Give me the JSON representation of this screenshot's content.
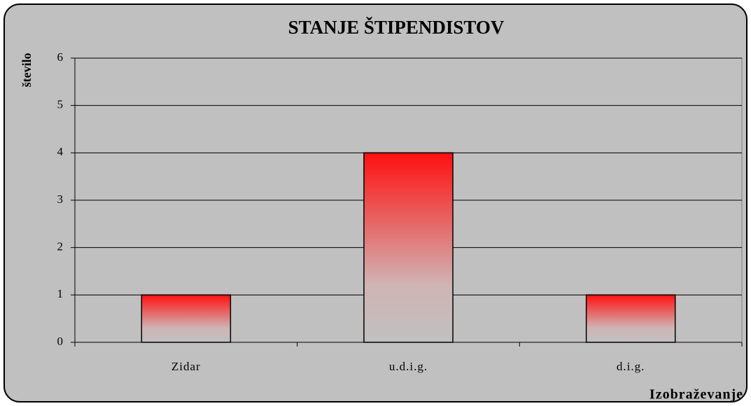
{
  "chart_data": {
    "type": "bar",
    "title": "STANJE ŠTIPENDISTOV",
    "y_label": "število",
    "x_label": "Izobraževanje",
    "categories": [
      "Zidar",
      "u.d.i.g.",
      "d.i.g."
    ],
    "values": [
      1,
      4,
      1
    ],
    "color": "#ff1010",
    "ylim": [
      0,
      6
    ],
    "yticks": [
      0,
      1,
      2,
      3,
      4,
      5,
      6
    ],
    "grid": true
  }
}
